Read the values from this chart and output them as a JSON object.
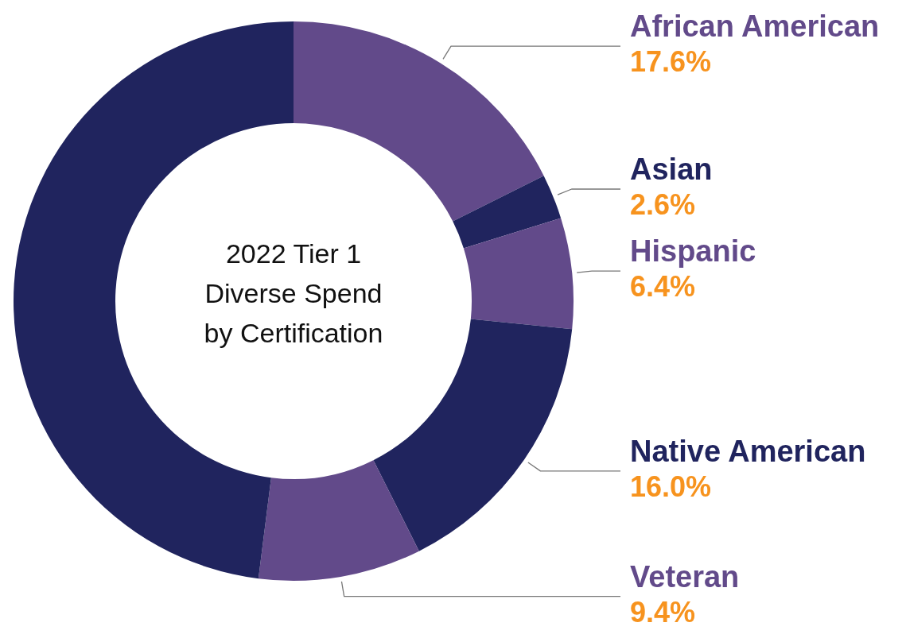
{
  "chart_data": {
    "type": "donut",
    "title": "2022 Tier 1\nDiverse Spend\nby Certification",
    "categories": [
      "African American",
      "Asian",
      "Hispanic",
      "Native American",
      "Veteran",
      null
    ],
    "values": [
      17.6,
      2.6,
      6.4,
      16.0,
      9.4,
      48.0
    ],
    "value_labels": [
      "17.6%",
      "2.6%",
      "6.4%",
      "16.0%",
      "9.4%",
      null
    ],
    "colors": [
      "#624a8a",
      "#20245e",
      "#624a8a",
      "#20245e",
      "#624a8a",
      "#20245e"
    ]
  }
}
